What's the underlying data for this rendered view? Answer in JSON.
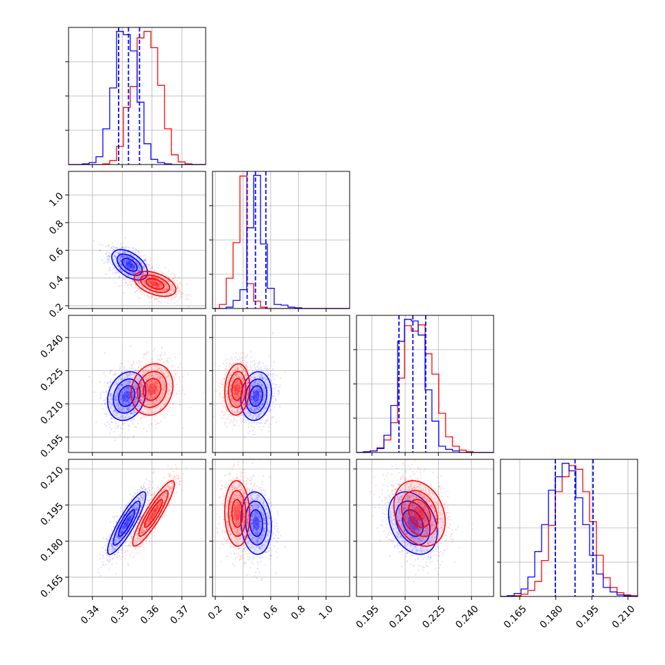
{
  "chart_data": {
    "type": "corner",
    "title": "",
    "parameters": [
      "",
      "",
      "",
      ""
    ],
    "grid": true,
    "series": [
      {
        "name": "",
        "color": "#0000ff"
      },
      {
        "name": "",
        "color": "#ff0000"
      }
    ],
    "axes": [
      {
        "range": [
          0.332,
          0.378
        ],
        "ticks": [
          0.34,
          0.35,
          0.36,
          0.37
        ],
        "tick_labels": [
          "0.34",
          "0.35",
          "0.36",
          "0.37"
        ]
      },
      {
        "range": [
          0.18,
          1.17
        ],
        "ticks": [
          0.2,
          0.4,
          0.6,
          0.8,
          1.0
        ],
        "tick_labels": [
          "0.2",
          "0.4",
          "0.6",
          "0.8",
          "1.0"
        ]
      },
      {
        "range": [
          0.188,
          0.25
        ],
        "ticks": [
          0.195,
          0.21,
          0.225,
          0.24
        ],
        "tick_labels": [
          "0.195",
          "0.210",
          "0.225",
          "0.240"
        ]
      },
      {
        "range": [
          0.157,
          0.214
        ],
        "ticks": [
          0.165,
          0.18,
          0.195,
          0.21
        ],
        "tick_labels": [
          "0.165",
          "0.180",
          "0.195",
          "0.210"
        ]
      }
    ],
    "histograms": [
      {
        "bin_edges": [
          0.332,
          0.3343,
          0.3366,
          0.3389,
          0.3412,
          0.3435,
          0.3458,
          0.3481,
          0.3504,
          0.3527,
          0.355,
          0.3573,
          0.3596,
          0.3619,
          0.3642,
          0.3665,
          0.3688,
          0.3711,
          0.3734,
          0.3757,
          0.378
        ],
        "counts": {
          "blue": [
            0,
            0,
            1,
            3,
            12,
            55,
            118,
            205,
            200,
            175,
            96,
            32,
            8,
            3,
            1,
            0,
            0,
            0,
            0,
            0
          ],
          "red": [
            0,
            0,
            0,
            0,
            0,
            1,
            6,
            28,
            88,
            120,
            195,
            205,
            180,
            122,
            55,
            15,
            4,
            1,
            0,
            0
          ]
        },
        "quantiles_blue": [
          0.3488,
          0.3521,
          0.3558
        ]
      },
      {
        "bin_edges": [
          0.18,
          0.2295,
          0.279,
          0.3285,
          0.378,
          0.4275,
          0.477,
          0.5265,
          0.576,
          0.6255,
          0.675,
          0.7245,
          0.774,
          0.8235,
          0.873,
          0.9225,
          0.972,
          1.0215,
          1.071,
          1.1205,
          1.17
        ],
        "counts": {
          "blue": [
            0,
            0,
            2,
            12,
            28,
            120,
            198,
            96,
            30,
            6,
            5,
            2,
            1,
            0,
            0,
            0,
            0,
            0,
            0,
            0
          ],
          "red": [
            0,
            6,
            45,
            98,
            197,
            37,
            11,
            2,
            0,
            0,
            0,
            0,
            0,
            0,
            0,
            0,
            0,
            0,
            0,
            0
          ]
        },
        "quantiles_blue": [
          0.43,
          0.49,
          0.565
        ]
      },
      {
        "bin_edges": [
          0.188,
          0.1911,
          0.1942,
          0.1973,
          0.2004,
          0.2035,
          0.2066,
          0.2097,
          0.2128,
          0.2159,
          0.219,
          0.2221,
          0.2252,
          0.2283,
          0.2314,
          0.2345,
          0.2376,
          0.2407,
          0.2438,
          0.2469,
          0.25
        ],
        "counts": {
          "blue": [
            0,
            1,
            2,
            5,
            22,
            60,
            142,
            170,
            168,
            150,
            80,
            40,
            8,
            4,
            2,
            0,
            0,
            0,
            0,
            0
          ],
          "red": [
            0,
            0,
            2,
            6,
            16,
            38,
            95,
            162,
            155,
            163,
            126,
            100,
            50,
            20,
            8,
            3,
            1,
            0,
            0,
            0
          ]
        },
        "quantiles_blue": [
          0.2072,
          0.2135,
          0.2193
        ]
      },
      {
        "bin_edges": [
          0.157,
          0.15985,
          0.1627,
          0.16555,
          0.1684,
          0.17125,
          0.1741,
          0.17695,
          0.1798,
          0.18265,
          0.1855,
          0.18835,
          0.1912,
          0.19405,
          0.1969,
          0.19975,
          0.2026,
          0.20545,
          0.2083,
          0.21115,
          0.214
        ],
        "counts": {
          "blue": [
            0,
            1,
            4,
            10,
            26,
            60,
            96,
            142,
            160,
            178,
            168,
            132,
            96,
            55,
            30,
            12,
            6,
            2,
            1,
            0
          ],
          "red": [
            0,
            0,
            1,
            3,
            8,
            20,
            48,
            95,
            140,
            160,
            175,
            170,
            140,
            100,
            55,
            25,
            12,
            5,
            2,
            1
          ]
        },
        "quantiles_blue": [
          0.1798,
          0.188,
          0.1955
        ]
      }
    ],
    "pairs": [
      {
        "row": 1,
        "col": 0,
        "blue": {
          "mean": [
            0.3525,
            0.4955
          ],
          "sd": [
            0.003,
            0.055
          ],
          "rho": -0.5,
          "n": 900
        },
        "red": {
          "mean": [
            0.361,
            0.358
          ],
          "sd": [
            0.0035,
            0.045
          ],
          "rho": -0.45,
          "n": 900
        }
      },
      {
        "row": 2,
        "col": 0,
        "blue": {
          "mean": [
            0.3515,
            0.2135
          ],
          "sd": [
            0.0032,
            0.0055
          ],
          "rho": 0.2,
          "n": 900
        },
        "red": {
          "mean": [
            0.36,
            0.2165
          ],
          "sd": [
            0.0035,
            0.0058
          ],
          "rho": 0.15,
          "n": 900
        }
      },
      {
        "row": 3,
        "col": 0,
        "blue": {
          "mean": [
            0.3515,
            0.1875
          ],
          "sd": [
            0.0032,
            0.0065
          ],
          "rho": 0.88,
          "n": 900
        },
        "red": {
          "mean": [
            0.3605,
            0.1915
          ],
          "sd": [
            0.0035,
            0.0068
          ],
          "rho": 0.9,
          "n": 900
        }
      },
      {
        "row": 2,
        "col": 1,
        "blue": {
          "mean": [
            0.495,
            0.2135
          ],
          "sd": [
            0.055,
            0.0055
          ],
          "rho": 0.15,
          "n": 900
        },
        "red": {
          "mean": [
            0.358,
            0.2165
          ],
          "sd": [
            0.045,
            0.0058
          ],
          "rho": 0.1,
          "n": 900
        }
      },
      {
        "row": 3,
        "col": 1,
        "blue": {
          "mean": [
            0.495,
            0.1875
          ],
          "sd": [
            0.055,
            0.0065
          ],
          "rho": -0.1,
          "n": 900
        },
        "red": {
          "mean": [
            0.358,
            0.1915
          ],
          "sd": [
            0.045,
            0.0068
          ],
          "rho": -0.05,
          "n": 900
        }
      },
      {
        "row": 3,
        "col": 2,
        "blue": {
          "mean": [
            0.2135,
            0.1875
          ],
          "sd": [
            0.0055,
            0.0065
          ],
          "rho": -0.3,
          "n": 900
        },
        "red": {
          "mean": [
            0.2165,
            0.1915
          ],
          "sd": [
            0.0058,
            0.0068
          ],
          "rho": -0.25,
          "n": 900
        }
      }
    ]
  }
}
